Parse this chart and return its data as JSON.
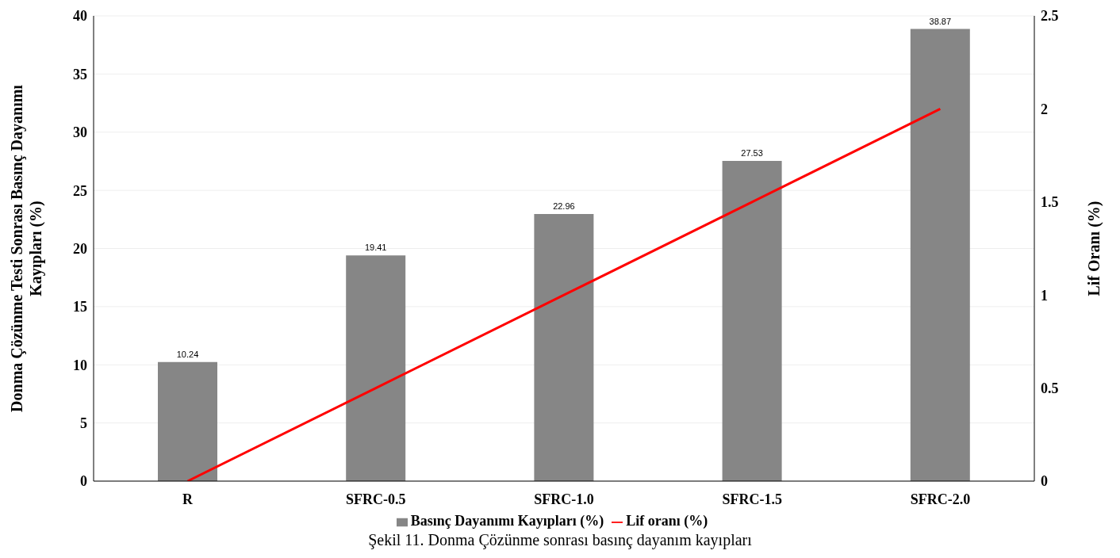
{
  "chart_data": {
    "type": "bar",
    "title": "Şekil 11. Donma Çözünme sonrası basınç dayanım kayıpları",
    "ylabel": "Donma Çözünme Testi Sonrası Basınç Dayanımı Kayıpları  (%)",
    "y2label": "Lif Oranı (%)",
    "categories": [
      "R",
      "SFRC-0.5",
      "SFRC-1.0",
      "SFRC-1.5",
      "SFRC-2.0"
    ],
    "series": [
      {
        "name": "Basınç Dayanımı Kayıpları (%)",
        "color": "#868686",
        "values": [
          10.24,
          19.41,
          22.96,
          27.53,
          38.87
        ],
        "value_labels": [
          "10.24",
          "19.41",
          "22.96",
          "27.53",
          "38.87"
        ]
      },
      {
        "name": "Lif oranı (%)",
        "type": "line",
        "axis": "y2",
        "color": "#ff0000",
        "values": [
          0,
          0.5,
          1.0,
          1.5,
          2.0
        ]
      }
    ],
    "ylim": [
      0,
      40
    ],
    "yticks": [
      0,
      5,
      10,
      15,
      20,
      25,
      30,
      35,
      40
    ],
    "y2lim": [
      0,
      2.5
    ],
    "y2ticks": [
      0,
      0.5,
      1,
      1.5,
      2,
      2.5
    ],
    "grid": "y",
    "legend": "bottom",
    "marker": "none",
    "line_style": "solid"
  }
}
